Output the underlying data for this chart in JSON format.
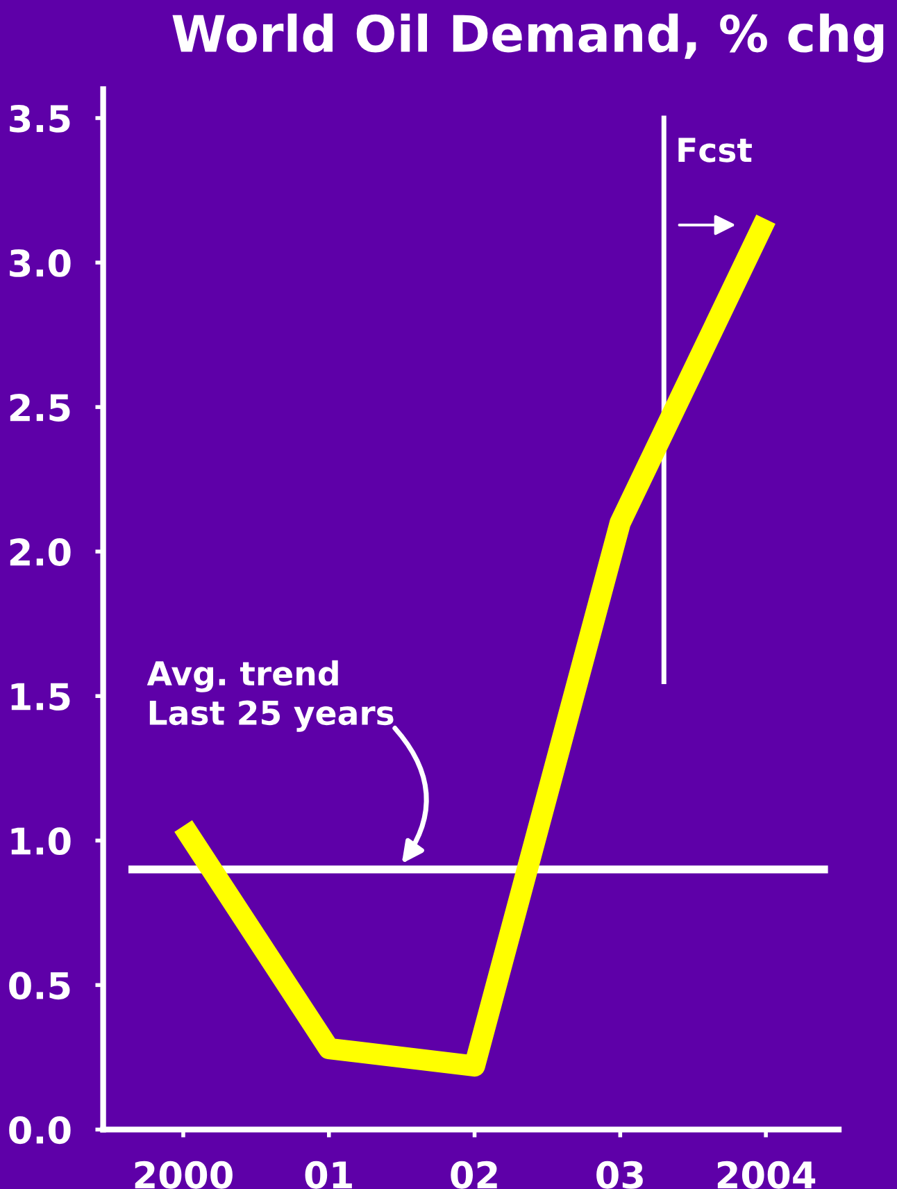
{
  "chart_data": {
    "type": "line",
    "title": "World Oil Demand, % chg",
    "categories": [
      "2000",
      "01",
      "02",
      "03",
      "2004"
    ],
    "series": [
      {
        "color": "#ffff00",
        "values": [
          1.05,
          0.28,
          0.22,
          2.1,
          3.15
        ]
      }
    ],
    "ylim": [
      0,
      3.6
    ],
    "yticks": [
      {
        "value": 0,
        "label": "0.0"
      },
      0.5,
      {
        "value": 1,
        "label": "1.0"
      },
      1.5,
      {
        "value": 2,
        "label": "2.0"
      },
      2.5,
      {
        "value": 3,
        "label": "3.0"
      },
      3.5
    ],
    "ref_lines": [
      {
        "axis": "y",
        "value": 0.9,
        "label": "Avg. trend\nLast 25 years",
        "color": "#ffffff"
      }
    ],
    "annotations": [
      "Fcst"
    ],
    "grid": false,
    "legend": false,
    "marker": "none",
    "line_style": "solid"
  }
}
